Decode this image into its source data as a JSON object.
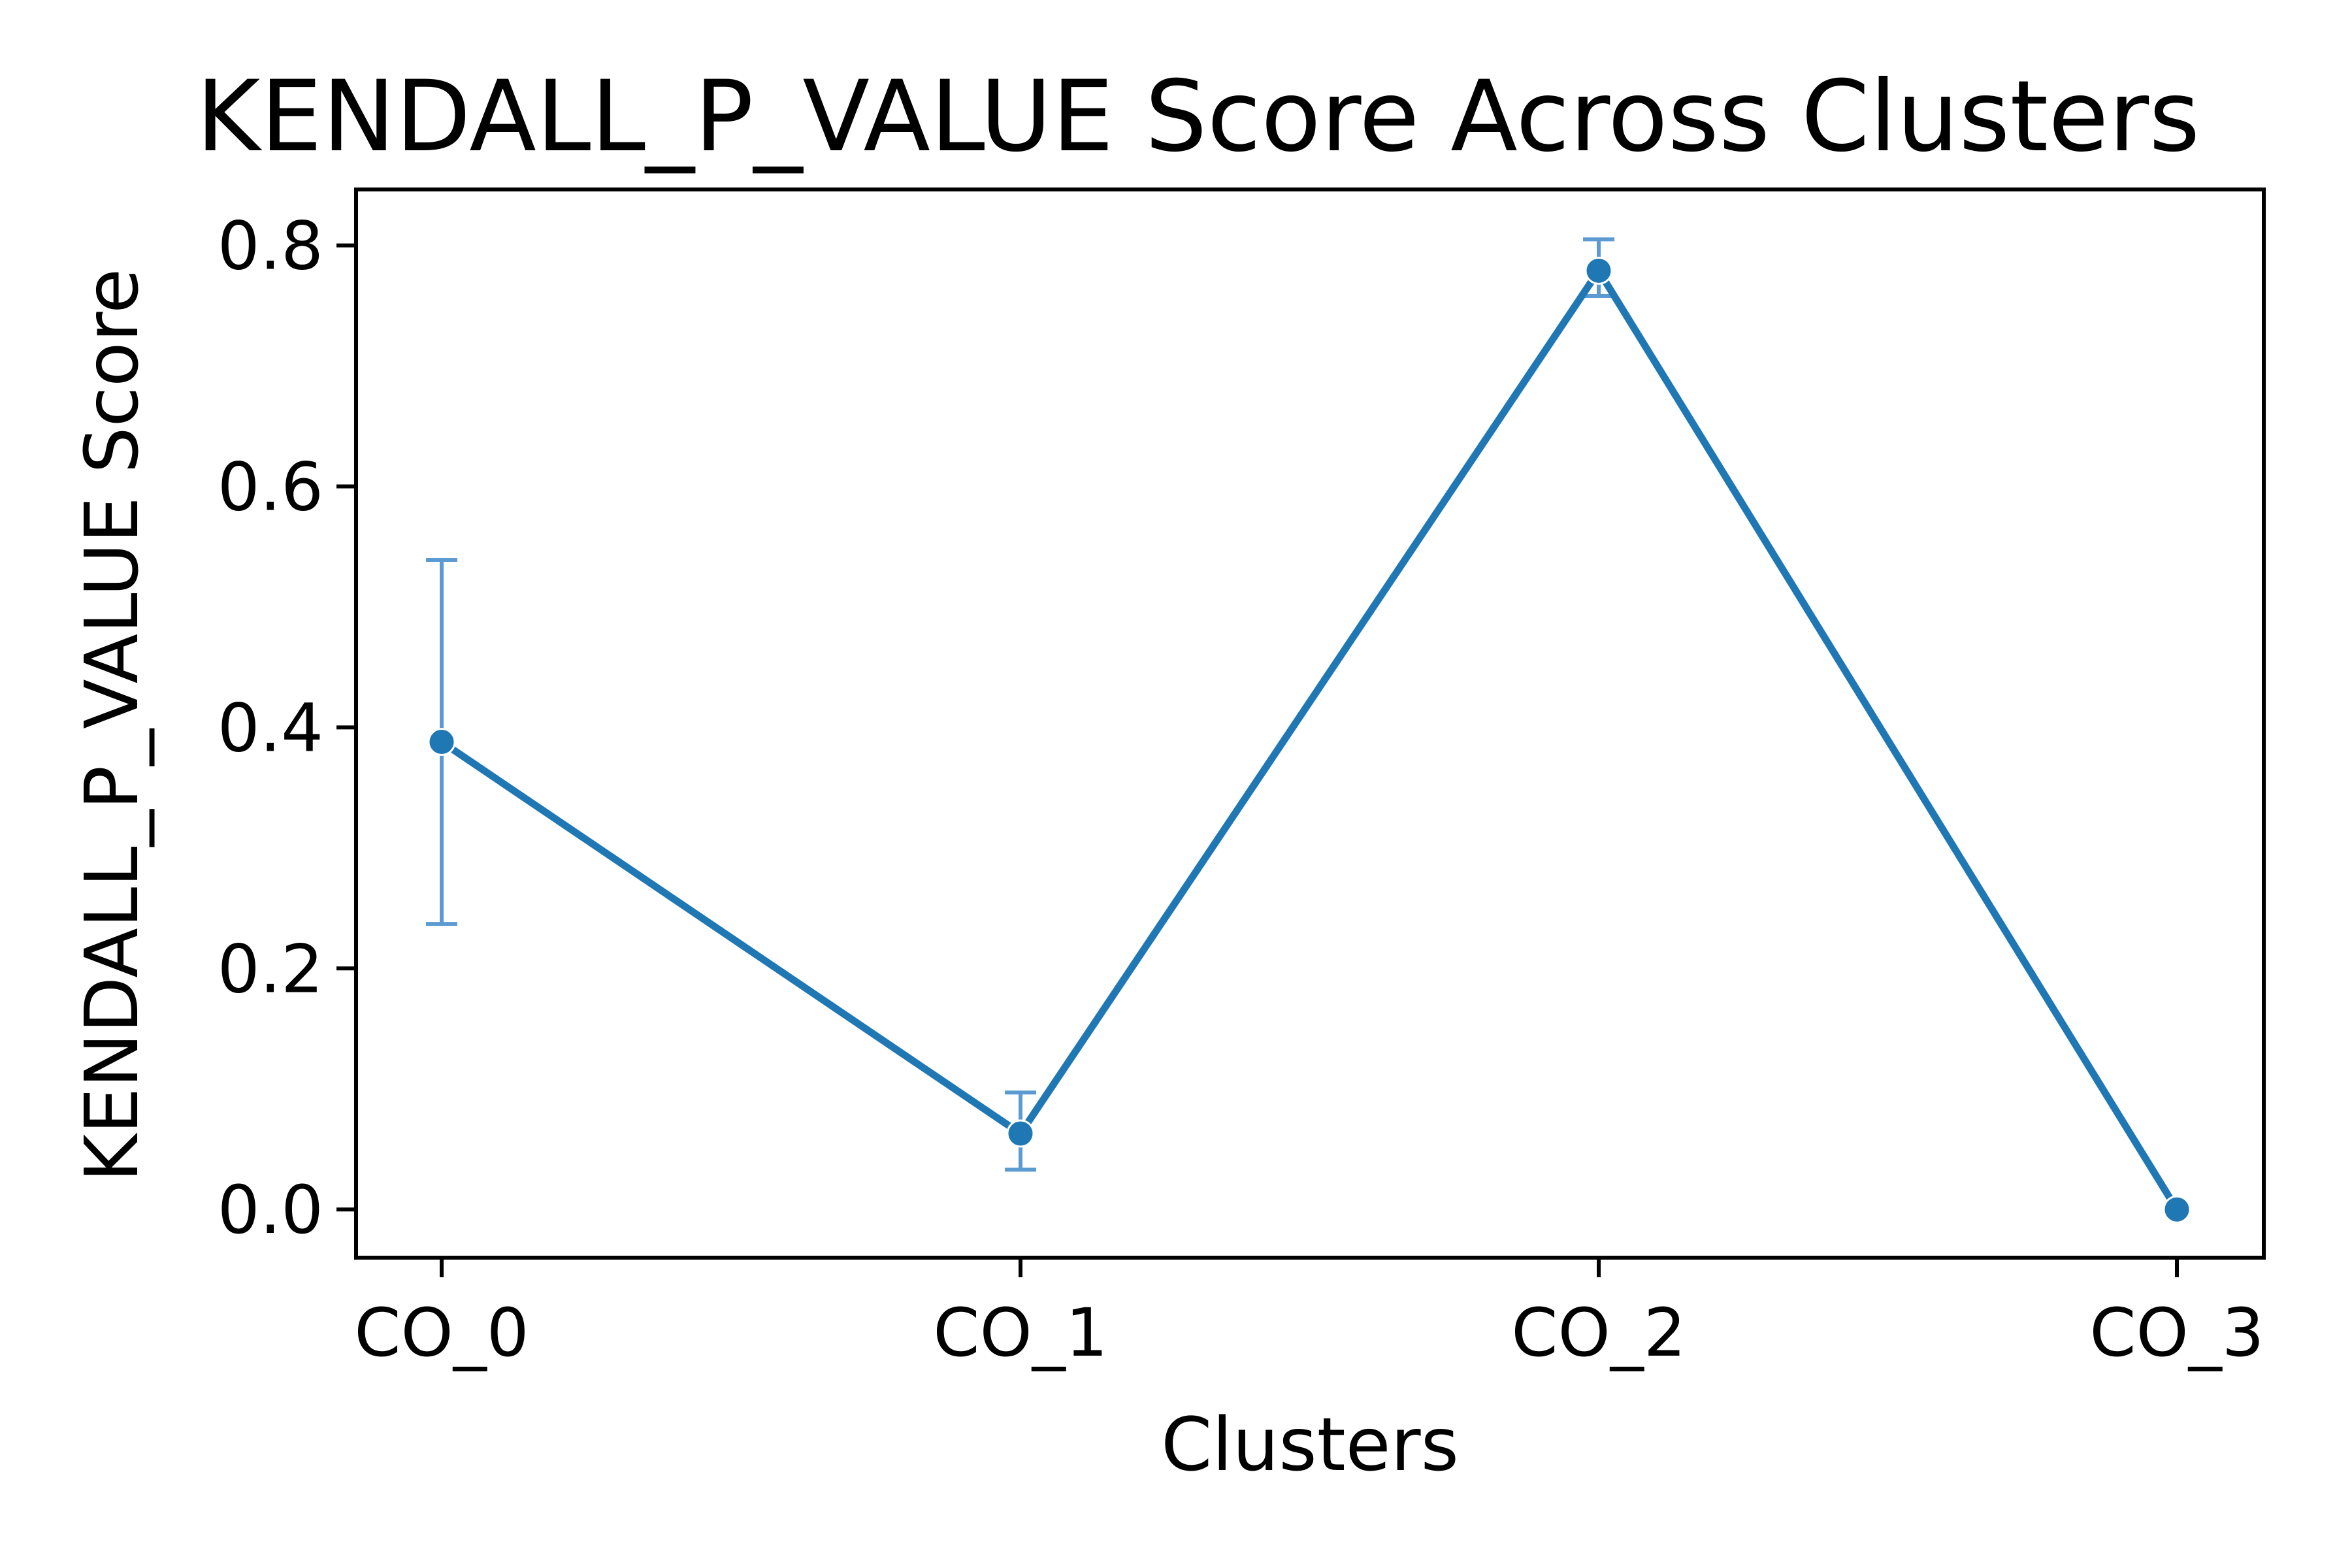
{
  "chart_data": {
    "type": "line",
    "title": "KENDALL_P_VALUE Score Across Clusters",
    "xlabel": "Clusters",
    "ylabel": "KENDALL_P_VALUE Score",
    "categories": [
      "CO_0",
      "CO_1",
      "CO_2",
      "CO_3"
    ],
    "series": [
      {
        "values": [
          0.388,
          0.063,
          0.779,
          0.0
        ],
        "error_low": [
          0.237,
          0.033,
          0.758,
          0.0
        ],
        "error_high": [
          0.539,
          0.097,
          0.805,
          0.0
        ]
      }
    ],
    "ylim": [
      -0.04,
      0.8464
    ],
    "yticks": [
      0.0,
      0.2,
      0.4,
      0.6,
      0.8
    ],
    "ytick_labels": [
      "0.0",
      "0.2",
      "0.4",
      "0.6",
      "0.8"
    ],
    "grid": false,
    "colors": {
      "line": "#1f77b4",
      "errorbar": "#5b9bd1",
      "axes": "#000000"
    }
  }
}
